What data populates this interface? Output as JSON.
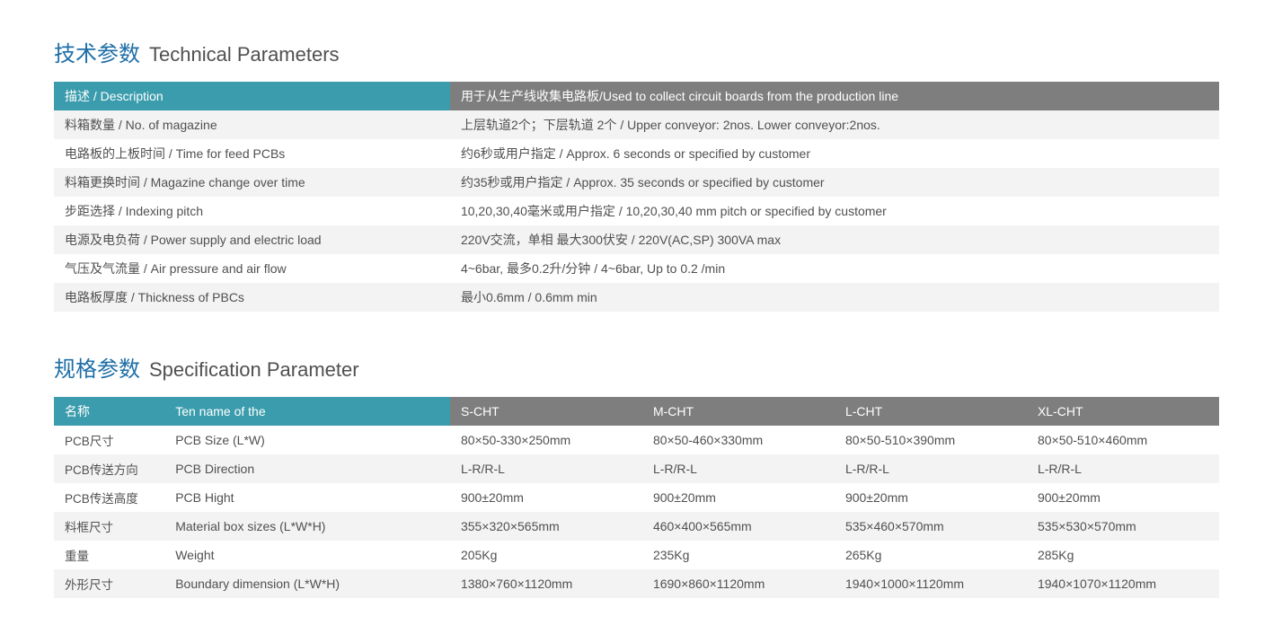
{
  "colors": {
    "accent": "#1f6fa8",
    "teal": "#3a9cac",
    "gray_header": "#7e7e7e",
    "row_alt": "#f3f3f3",
    "row_bg": "#ffffff",
    "text": "#505050"
  },
  "section1": {
    "title_cn": "技术参数",
    "title_en": "Technical Parameters",
    "header_left": "描述 / Description",
    "header_right": "用于从生产线收集电路板/Used to collect circuit boards from the production line",
    "rows": [
      {
        "label": "料箱数量 / No. of magazine",
        "value": "上层轨道2个；下层轨道 2个 / Upper conveyor: 2nos. Lower conveyor:2nos."
      },
      {
        "label": "电路板的上板时间 / Time for feed PCBs",
        "value": "约6秒或用户指定 / Approx. 6 seconds or specified by customer"
      },
      {
        "label": "料箱更换时间 / Magazine change over time",
        "value": "约35秒或用户指定 / Approx. 35 seconds or specified by customer"
      },
      {
        "label": "步距选择 / Indexing pitch",
        "value": "10,20,30,40毫米或用户指定 / 10,20,30,40 mm pitch or specified by customer"
      },
      {
        "label": "电源及电负荷 / Power supply and electric load",
        "value": "220V交流，单相 最大300伏安 / 220V(AC,SP) 300VA max"
      },
      {
        "label": "气压及气流量 / Air pressure and air flow",
        "value": "4~6bar, 最多0.2升/分钟 / 4~6bar, Up to 0.2 /min"
      },
      {
        "label": "电路板厚度 / Thickness of PBCs",
        "value": "最小0.6mm / 0.6mm min"
      }
    ]
  },
  "section2": {
    "title_cn": "规格参数",
    "title_en": "Specification Parameter",
    "header_cn": "名称",
    "header_en": "Ten name of the",
    "columns": [
      "S-CHT",
      "M-CHT",
      "L-CHT",
      "XL-CHT"
    ],
    "rows": [
      {
        "cn": "PCB尺寸",
        "en": "PCB Size (L*W)",
        "v": [
          "80×50-330×250mm",
          "80×50-460×330mm",
          "80×50-510×390mm",
          "80×50-510×460mm"
        ]
      },
      {
        "cn": "PCB传送方向",
        "en": "PCB Direction",
        "v": [
          "L-R/R-L",
          "L-R/R-L",
          "L-R/R-L",
          "L-R/R-L"
        ]
      },
      {
        "cn": "PCB传送高度",
        "en": "PCB Hight",
        "v": [
          "900±20mm",
          "900±20mm",
          "900±20mm",
          "900±20mm"
        ]
      },
      {
        "cn": "料框尺寸",
        "en": "Material box sizes (L*W*H)",
        "v": [
          "355×320×565mm",
          "460×400×565mm",
          "535×460×570mm",
          "535×530×570mm"
        ]
      },
      {
        "cn": "重量",
        "en": "Weight",
        "v": [
          "205Kg",
          "235Kg",
          "265Kg",
          "285Kg"
        ]
      },
      {
        "cn": "外形尺寸",
        "en": "Boundary dimension (L*W*H)",
        "v": [
          "1380×760×1120mm",
          "1690×860×1120mm",
          "1940×1000×1120mm",
          "1940×1070×1120mm"
        ]
      }
    ]
  }
}
